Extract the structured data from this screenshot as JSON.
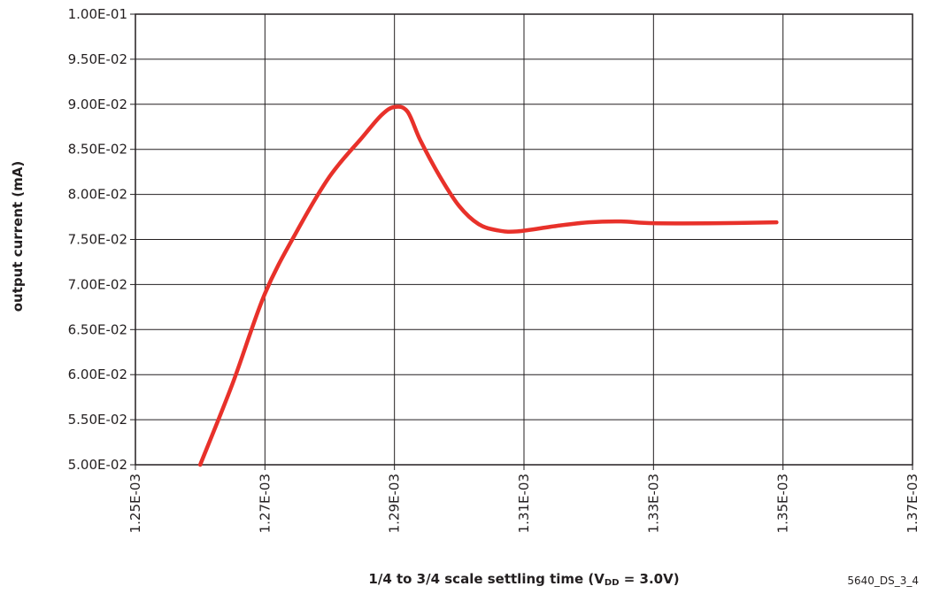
{
  "chart_data": {
    "type": "line",
    "title": "",
    "xlabel": "1/4 to 3/4 scale settling time (V",
    "xlabel_subscript": "DD",
    "xlabel_suffix": " = 3.0V)",
    "ylabel": "output current (mA)",
    "figure_id": "5640_DS_3_4",
    "xlim": [
      0.00125,
      0.00137
    ],
    "ylim": [
      0.05,
      0.1
    ],
    "grid": true,
    "legend": "none",
    "x_ticks": [
      0.00125,
      0.00127,
      0.00129,
      0.00131,
      0.00133,
      0.00135,
      0.00137
    ],
    "x_tick_labels": [
      "1.25E-03",
      "1.27E-03",
      "1.29E-03",
      "1.31E-03",
      "1.33E-03",
      "1.35E-03",
      "1.37E-03"
    ],
    "y_ticks": [
      0.05,
      0.055,
      0.06,
      0.065,
      0.07,
      0.075,
      0.08,
      0.085,
      0.09,
      0.095,
      0.1
    ],
    "y_tick_labels": [
      "5.00E-02",
      "5.50E-02",
      "6.00E-02",
      "6.50E-02",
      "7.00E-02",
      "7.50E-02",
      "8.00E-02",
      "8.50E-02",
      "9.00E-02",
      "9.50E-02",
      "1.00E-01"
    ],
    "series": [
      {
        "color": "#e8312a",
        "points": [
          [
            0.00126,
            0.05
          ],
          [
            0.001265,
            0.059
          ],
          [
            0.00127,
            0.069
          ],
          [
            0.001275,
            0.076
          ],
          [
            0.00128,
            0.082
          ],
          [
            0.001285,
            0.0863
          ],
          [
            0.001288,
            0.0888
          ],
          [
            0.00129,
            0.0897
          ],
          [
            0.001292,
            0.0892
          ],
          [
            0.001294,
            0.086
          ],
          [
            0.001297,
            0.082
          ],
          [
            0.0013,
            0.0787
          ],
          [
            0.001303,
            0.0767
          ],
          [
            0.001306,
            0.076
          ],
          [
            0.001309,
            0.0759
          ],
          [
            0.001315,
            0.0765
          ],
          [
            0.00132,
            0.0769
          ],
          [
            0.001325,
            0.077
          ],
          [
            0.00133,
            0.0768
          ],
          [
            0.00134,
            0.0768
          ],
          [
            0.001349,
            0.0769
          ]
        ]
      }
    ]
  }
}
